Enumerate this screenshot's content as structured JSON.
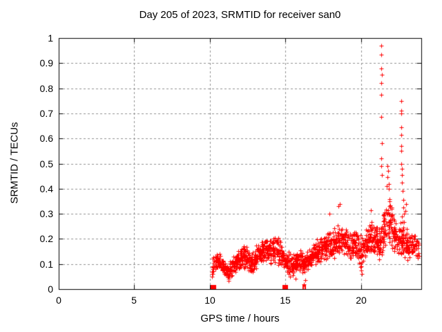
{
  "figure": {
    "title": "Day 205 of 2023, SRMTID for receiver san0",
    "xlabel": "GPS time / hours",
    "ylabel": "SRMTID / TECUs"
  },
  "chart_data": {
    "type": "scatter",
    "title": "Day 205 of 2023, SRMTID for receiver san0",
    "xlabel": "GPS time / hours",
    "ylabel": "SRMTID / TECUs",
    "xlim": [
      0,
      24
    ],
    "ylim": [
      0,
      1
    ],
    "xticks": [
      0,
      5,
      10,
      15,
      20
    ],
    "xtick_labels": [
      "0",
      "5",
      "10",
      "15",
      "20"
    ],
    "yticks": [
      0,
      0.1,
      0.2,
      0.3,
      0.4,
      0.5,
      0.6,
      0.7,
      0.8,
      0.9,
      1
    ],
    "ytick_labels": [
      "0",
      "0.1",
      "0.2",
      "0.3",
      "0.4",
      "0.5",
      "0.6",
      "0.7",
      "0.8",
      "0.9",
      "1"
    ],
    "grid": true,
    "legend": "none",
    "marker": {
      "shape": "plus",
      "size": 7,
      "color": "#ff0000"
    },
    "colors": {
      "points": "#ff0000",
      "grid": "#909090",
      "axis": "#000000",
      "background": "#ffffff",
      "text": "#000000"
    },
    "series": [
      {
        "name": "SRMTID",
        "description": "dense noisy band of + markers; [hour, band_center, band_halfwidth] control points",
        "band": [
          [
            10.15,
            0.075,
            0.05
          ],
          [
            10.45,
            0.115,
            0.035
          ],
          [
            10.7,
            0.11,
            0.035
          ],
          [
            10.95,
            0.08,
            0.035
          ],
          [
            11.2,
            0.065,
            0.035
          ],
          [
            11.45,
            0.08,
            0.04
          ],
          [
            11.7,
            0.105,
            0.045
          ],
          [
            11.95,
            0.12,
            0.045
          ],
          [
            12.2,
            0.13,
            0.05
          ],
          [
            12.45,
            0.12,
            0.05
          ],
          [
            12.7,
            0.1,
            0.045
          ],
          [
            12.95,
            0.11,
            0.05
          ],
          [
            13.2,
            0.145,
            0.05
          ],
          [
            13.45,
            0.155,
            0.055
          ],
          [
            13.7,
            0.16,
            0.055
          ],
          [
            13.95,
            0.15,
            0.055
          ],
          [
            14.2,
            0.15,
            0.06
          ],
          [
            14.45,
            0.16,
            0.06
          ],
          [
            14.7,
            0.135,
            0.055
          ],
          [
            14.95,
            0.12,
            0.05
          ],
          [
            15.2,
            0.1,
            0.05
          ],
          [
            15.45,
            0.095,
            0.05
          ],
          [
            15.7,
            0.105,
            0.05
          ],
          [
            15.95,
            0.115,
            0.05
          ],
          [
            16.2,
            0.105,
            0.06
          ],
          [
            16.45,
            0.12,
            0.05
          ],
          [
            16.7,
            0.13,
            0.05
          ],
          [
            16.95,
            0.14,
            0.05
          ],
          [
            17.2,
            0.15,
            0.055
          ],
          [
            17.45,
            0.16,
            0.055
          ],
          [
            17.7,
            0.165,
            0.06
          ],
          [
            17.95,
            0.17,
            0.06
          ],
          [
            18.2,
            0.18,
            0.065
          ],
          [
            18.45,
            0.195,
            0.075
          ],
          [
            18.7,
            0.2,
            0.075
          ],
          [
            18.95,
            0.185,
            0.07
          ],
          [
            19.2,
            0.175,
            0.065
          ],
          [
            19.45,
            0.17,
            0.065
          ],
          [
            19.7,
            0.165,
            0.07
          ],
          [
            19.95,
            0.145,
            0.075
          ],
          [
            20.2,
            0.165,
            0.07
          ],
          [
            20.45,
            0.195,
            0.075
          ],
          [
            20.7,
            0.21,
            0.08
          ],
          [
            20.95,
            0.185,
            0.07
          ],
          [
            21.2,
            0.18,
            0.075
          ],
          [
            21.45,
            0.21,
            0.09
          ],
          [
            21.7,
            0.27,
            0.11
          ],
          [
            21.95,
            0.27,
            0.11
          ],
          [
            22.2,
            0.22,
            0.08
          ],
          [
            22.45,
            0.185,
            0.08
          ],
          [
            22.7,
            0.21,
            0.09
          ],
          [
            22.95,
            0.19,
            0.08
          ],
          [
            23.2,
            0.165,
            0.06
          ],
          [
            23.5,
            0.175,
            0.055
          ],
          [
            23.85,
            0.155,
            0.045
          ]
        ],
        "points_per_band_segment": 27,
        "outliers": [
          [
            21.37,
            0.97
          ],
          [
            21.37,
            0.935
          ],
          [
            21.36,
            0.88
          ],
          [
            21.38,
            0.855
          ],
          [
            21.37,
            0.82
          ],
          [
            21.37,
            0.775
          ],
          [
            21.36,
            0.685
          ],
          [
            21.38,
            0.58
          ],
          [
            21.37,
            0.52
          ],
          [
            21.36,
            0.49
          ],
          [
            21.38,
            0.455
          ],
          [
            21.7,
            0.41
          ],
          [
            21.75,
            0.49
          ],
          [
            21.8,
            0.47
          ],
          [
            21.78,
            0.445
          ],
          [
            21.83,
            0.42
          ],
          [
            21.86,
            0.4
          ],
          [
            22.68,
            0.75
          ],
          [
            22.69,
            0.71
          ],
          [
            22.67,
            0.7
          ],
          [
            22.68,
            0.645
          ],
          [
            22.69,
            0.615
          ],
          [
            22.67,
            0.57
          ],
          [
            22.68,
            0.55
          ],
          [
            22.68,
            0.5
          ],
          [
            22.7,
            0.48
          ],
          [
            22.72,
            0.455
          ],
          [
            22.74,
            0.425
          ],
          [
            22.78,
            0.39
          ],
          [
            22.8,
            0.355
          ],
          [
            22.82,
            0.325
          ],
          [
            22.85,
            0.3
          ],
          [
            18.5,
            0.33
          ],
          [
            18.62,
            0.34
          ],
          [
            20.65,
            0.315
          ],
          [
            17.9,
            0.3
          ],
          [
            16.3,
            0.035
          ],
          [
            16.25,
            0.02
          ],
          [
            15.7,
            0.04
          ],
          [
            20.0,
            0.075
          ],
          [
            20.05,
            0.06
          ],
          [
            23.0,
            0.34
          ],
          [
            22.95,
            0.31
          ]
        ],
        "near_zero_clusters_hours": [
          [
            10.18,
            10.32
          ],
          [
            14.94,
            15.06
          ]
        ],
        "near_zero_singles_hours": [
          16.17,
          16.33
        ]
      }
    ]
  }
}
